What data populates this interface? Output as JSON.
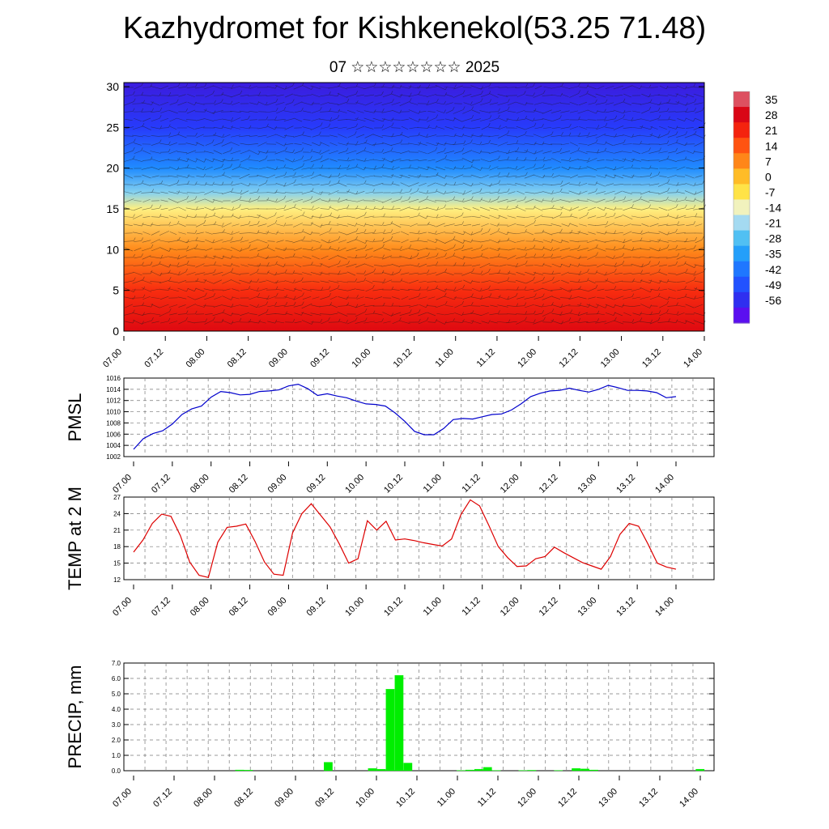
{
  "title": "Kazhydromet for Kishkenekol(53.25 71.48)",
  "subtitle": "07 ☆☆☆☆☆☆☆☆ 2025",
  "chart_data": [
    {
      "type": "heatmap",
      "ylim": [
        0,
        30.5
      ],
      "yticks": [
        "0",
        "5",
        "10",
        "15",
        "20",
        "25",
        "30"
      ],
      "xticks": [
        "07.00",
        "07.12",
        "08.00",
        "08.12",
        "09.00",
        "09.12",
        "10.00",
        "10.12",
        "11.00",
        "11.12",
        "12.00",
        "12.12",
        "13.00",
        "13.12",
        "14.00"
      ],
      "colorbar_labels": [
        "35",
        "28",
        "21",
        "14",
        "7",
        "0",
        "-7",
        "-14",
        "-21",
        "-28",
        "-35",
        "-42",
        "-49",
        "-56"
      ],
      "temperature_profile": [
        {
          "level": 0,
          "value": 30
        },
        {
          "level": 5,
          "value": 23
        },
        {
          "level": 10,
          "value": 10
        },
        {
          "level": 15,
          "value": -7
        },
        {
          "level": 17,
          "value": -20
        },
        {
          "level": 20,
          "value": -35
        },
        {
          "level": 25,
          "value": -50
        },
        {
          "level": 30,
          "value": -56
        }
      ]
    },
    {
      "type": "line",
      "ylabel": "PMSL",
      "ylim": [
        1002,
        1016
      ],
      "yticks": [
        "1002",
        "1004",
        "1006",
        "1008",
        "1010",
        "1012",
        "1014",
        "1016"
      ],
      "xticks": [
        "07.00",
        "07.12",
        "08.00",
        "08.12",
        "09.00",
        "09.12",
        "10.00",
        "10.12",
        "11.00",
        "11.12",
        "12.00",
        "12.12",
        "13.00",
        "13.12",
        "14.00"
      ],
      "series": [
        {
          "color": "#0000cc",
          "values": [
            1003.3,
            1005.2,
            1006.1,
            1006.6,
            1007.8,
            1009.5,
            1010.5,
            1011.0,
            1012.6,
            1013.6,
            1013.4,
            1013.0,
            1013.1,
            1013.6,
            1013.7,
            1013.9,
            1014.6,
            1014.9,
            1014.1,
            1012.9,
            1013.2,
            1012.8,
            1012.5,
            1011.9,
            1011.4,
            1011.3,
            1011.0,
            1009.8,
            1008.3,
            1006.5,
            1005.9,
            1005.9,
            1007.0,
            1008.6,
            1008.8,
            1008.7,
            1009.1,
            1009.5,
            1009.6,
            1010.3,
            1011.4,
            1012.7,
            1013.3,
            1013.7,
            1013.8,
            1014.2,
            1013.8,
            1013.5,
            1014.0,
            1014.7,
            1014.3,
            1013.8,
            1013.8,
            1013.7,
            1013.4,
            1012.5,
            1012.7
          ]
        }
      ]
    },
    {
      "type": "line",
      "ylabel": "TEMP at 2 M",
      "ylim": [
        12,
        27
      ],
      "yticks": [
        "12",
        "15",
        "18",
        "21",
        "24",
        "27"
      ],
      "xticks": [
        "07.00",
        "07.12",
        "08.00",
        "08.12",
        "09.00",
        "09.12",
        "10.00",
        "10.12",
        "11.00",
        "11.12",
        "12.00",
        "12.12",
        "13.00",
        "13.12",
        "14.00"
      ],
      "series": [
        {
          "color": "#dd0000",
          "values": [
            17.0,
            19.2,
            22.2,
            23.9,
            23.5,
            20.0,
            15.2,
            12.8,
            12.4,
            18.8,
            21.5,
            21.7,
            22.1,
            18.9,
            15.2,
            13.0,
            12.8,
            20.5,
            24.0,
            25.8,
            23.7,
            21.6,
            18.5,
            15.0,
            15.8,
            22.7,
            21.0,
            22.6,
            19.2,
            19.4,
            19.1,
            18.7,
            18.4,
            18.1,
            19.4,
            23.8,
            26.5,
            25.4,
            21.8,
            18.0,
            16.0,
            14.4,
            14.5,
            15.8,
            16.2,
            17.9,
            16.9,
            16.0,
            15.1,
            14.5,
            13.9,
            16.2,
            20.2,
            22.2,
            21.7,
            18.5,
            15.0,
            14.3,
            13.9
          ]
        }
      ]
    },
    {
      "type": "bar",
      "ylabel": "PRECIP, mm",
      "ylim": [
        0,
        7.0
      ],
      "yticks": [
        "0.0",
        "1.0",
        "2.0",
        "3.0",
        "4.0",
        "5.0",
        "6.0",
        "7.0"
      ],
      "xticks": [
        "07.00",
        "07.12",
        "08.00",
        "08.12",
        "09.00",
        "09.12",
        "10.00",
        "10.12",
        "11.00",
        "11.12",
        "12.00",
        "12.12",
        "13.00",
        "13.12",
        "14.00"
      ],
      "bar_color": "#00ee00",
      "values": [
        0,
        0,
        0,
        0,
        0,
        0,
        0,
        0,
        0,
        0,
        0,
        0,
        0.05,
        0.04,
        0,
        0,
        0,
        0,
        0,
        0,
        0,
        0,
        0.55,
        0,
        0,
        0,
        0,
        0.15,
        0.1,
        5.3,
        6.2,
        0.5,
        0,
        0,
        0,
        0,
        0,
        0.02,
        0.05,
        0.1,
        0.22,
        0.02,
        0,
        0,
        0.02,
        0.03,
        0,
        0,
        0.02,
        0,
        0.15,
        0.12,
        0.05,
        0,
        0,
        0,
        0,
        0,
        0,
        0,
        0,
        0,
        0,
        0,
        0.1
      ]
    }
  ]
}
